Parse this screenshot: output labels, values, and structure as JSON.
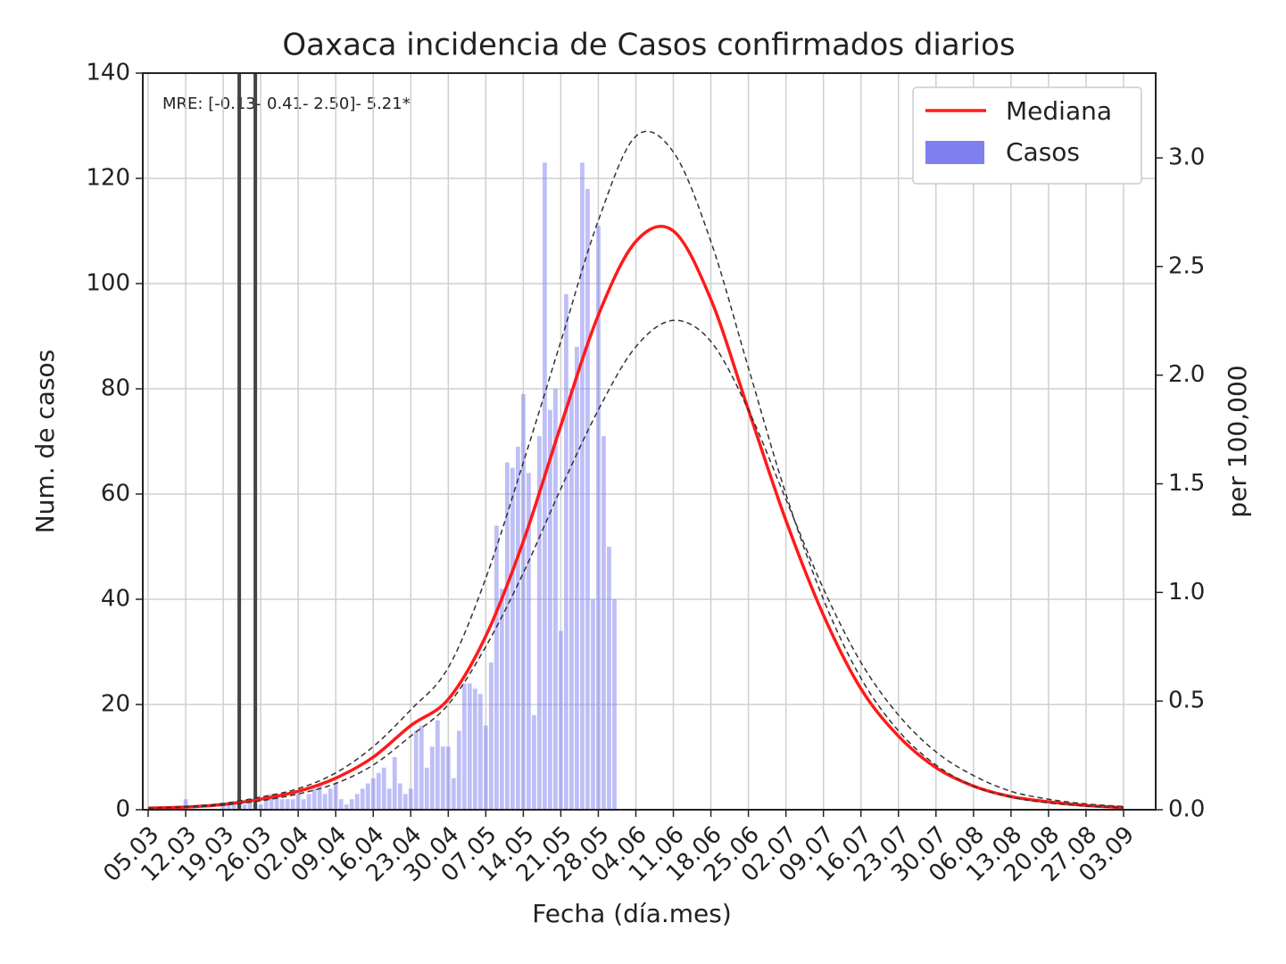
{
  "chart_data": {
    "type": "bar_line",
    "title": "Oaxaca incidencia de Casos confirmados diarios",
    "xlabel": "Fecha (día.mes)",
    "ylabel": "Num. de casos",
    "y2label": "per 100,000",
    "annotation": "MRE: [-0.13- 0.41- 2.50]- 5.21*",
    "xlim": [
      "04.03",
      "09.09"
    ],
    "xticks": [
      "05.03",
      "12.03",
      "19.03",
      "26.03",
      "02.04",
      "09.04",
      "16.04",
      "23.04",
      "30.04",
      "07.05",
      "14.05",
      "21.05",
      "28.05",
      "04.06",
      "11.06",
      "18.06",
      "25.06",
      "02.07",
      "09.07",
      "16.07",
      "23.07",
      "30.07",
      "06.08",
      "13.08",
      "20.08",
      "27.08",
      "03.09"
    ],
    "ylim": [
      0,
      140
    ],
    "yticks": [
      0,
      20,
      40,
      60,
      80,
      100,
      120,
      140
    ],
    "y2lim": [
      0,
      3.39
    ],
    "y2ticks": [
      {
        "value": 0,
        "label": "0.0"
      },
      0.5,
      {
        "value": 1,
        "label": "1.0"
      },
      1.5,
      {
        "value": 2,
        "label": "2.0"
      },
      2.5,
      {
        "value": 3,
        "label": "3.0"
      }
    ],
    "grid": true,
    "legend": "upper right",
    "vlines": [
      "22.03",
      "25.03"
    ],
    "bars": {
      "name": "Casos",
      "color": "#7f7ff0",
      "x": [
        "12.03",
        "13.03",
        "14.03",
        "15.03",
        "16.03",
        "17.03",
        "18.03",
        "19.03",
        "20.03",
        "21.03",
        "22.03",
        "23.03",
        "24.03",
        "25.03",
        "26.03",
        "27.03",
        "28.03",
        "29.03",
        "30.03",
        "31.03",
        "01.04",
        "02.04",
        "03.04",
        "04.04",
        "05.04",
        "06.04",
        "07.04",
        "08.04",
        "09.04",
        "10.04",
        "11.04",
        "12.04",
        "13.04",
        "14.04",
        "15.04",
        "16.04",
        "17.04",
        "18.04",
        "19.04",
        "20.04",
        "21.04",
        "22.04",
        "23.04",
        "24.04",
        "25.04",
        "26.04",
        "27.04",
        "28.04",
        "29.04",
        "30.04",
        "01.05",
        "02.05",
        "03.05",
        "04.05",
        "05.05",
        "06.05",
        "07.05",
        "08.05",
        "09.05",
        "10.05",
        "11.05",
        "12.05",
        "13.05",
        "14.05",
        "15.05",
        "16.05",
        "17.05",
        "18.05",
        "19.05",
        "20.05",
        "21.05",
        "22.05",
        "23.05",
        "24.05",
        "25.05",
        "26.05",
        "27.05",
        "28.05",
        "29.05",
        "30.05",
        "31.05"
      ],
      "values": [
        2,
        0,
        0,
        0,
        0,
        0,
        0,
        1,
        1,
        1,
        2,
        1,
        2,
        1,
        1,
        2,
        3,
        3,
        2,
        2,
        2,
        3,
        2,
        3,
        4,
        5,
        3,
        4,
        5,
        2,
        1,
        2,
        3,
        4,
        5,
        6,
        7,
        8,
        4,
        10,
        5,
        3,
        4,
        15,
        16,
        8,
        12,
        17,
        12,
        12,
        6,
        15,
        24,
        24,
        23,
        22,
        16,
        28,
        54,
        42,
        66,
        65,
        69,
        79,
        64,
        18,
        71,
        123,
        76,
        80,
        34,
        98,
        80,
        88,
        123,
        118,
        40,
        111,
        71,
        50,
        40
      ]
    },
    "series": [
      {
        "name": "Mediana",
        "color": "#ff1a1a",
        "x": [
          "05.03",
          "12.03",
          "19.03",
          "26.03",
          "02.04",
          "09.04",
          "16.04",
          "23.04",
          "30.04",
          "07.05",
          "14.05",
          "21.05",
          "28.05",
          "04.06",
          "11.06",
          "18.06",
          "25.06",
          "02.07",
          "09.07",
          "16.07",
          "23.07",
          "30.07",
          "06.08",
          "13.08",
          "20.08",
          "27.08",
          "03.09"
        ],
        "values": [
          0.3,
          0.5,
          1,
          2,
          3.5,
          6,
          10,
          16,
          21,
          33,
          51,
          73,
          94,
          108,
          110,
          97,
          76,
          55,
          37,
          23,
          14,
          8,
          4.5,
          2.5,
          1.5,
          0.8,
          0.4
        ]
      },
      {
        "color": "#333333",
        "x": [
          "05.03",
          "12.03",
          "19.03",
          "26.03",
          "02.04",
          "09.04",
          "16.04",
          "23.04",
          "30.04",
          "07.05",
          "14.05",
          "21.05",
          "28.05",
          "04.06",
          "11.06",
          "18.06",
          "25.06",
          "02.07",
          "09.07",
          "16.07",
          "23.07",
          "30.07",
          "06.08",
          "13.08",
          "20.08",
          "27.08",
          "03.09"
        ],
        "values": [
          0.3,
          0.6,
          1.2,
          2.4,
          4,
          7,
          12,
          19,
          27,
          44,
          66,
          89,
          112,
          128,
          125,
          108,
          84,
          60,
          40,
          25,
          15,
          8.5,
          4.5,
          2.4,
          1.3,
          0.7,
          0.35
        ]
      },
      {
        "color": "#333333",
        "x": [
          "05.03",
          "12.03",
          "19.03",
          "26.03",
          "02.04",
          "09.04",
          "16.04",
          "23.04",
          "30.04",
          "07.05",
          "14.05",
          "21.05",
          "28.05",
          "04.06",
          "11.06",
          "18.06",
          "25.06",
          "02.07",
          "09.07",
          "16.07",
          "23.07",
          "30.07",
          "06.08",
          "13.08",
          "20.08",
          "27.08",
          "03.09"
        ],
        "values": [
          0.3,
          0.5,
          0.9,
          1.7,
          3,
          5,
          8.5,
          14,
          20,
          31,
          45,
          61,
          76,
          88,
          93,
          89,
          76,
          59,
          42,
          28,
          18,
          11,
          6.5,
          3.5,
          2,
          1.1,
          0.6
        ]
      }
    ]
  }
}
